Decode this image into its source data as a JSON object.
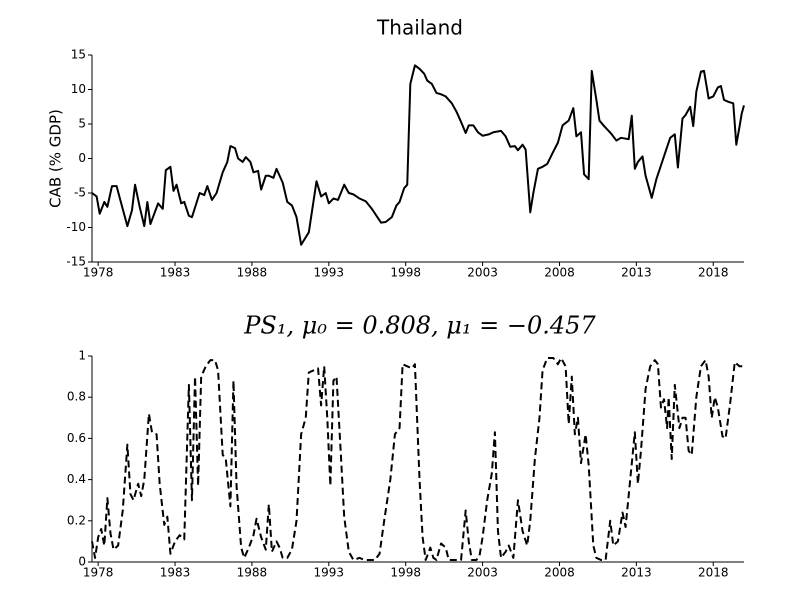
{
  "chart_data": [
    {
      "type": "line",
      "title": "Thailand",
      "ylabel": "CAB (% GDP)",
      "color": "#000000",
      "line_style": "solid",
      "xlim": [
        1977.6,
        2020
      ],
      "xticks": [
        1978,
        1983,
        1988,
        1993,
        1998,
        2003,
        2008,
        2013,
        2018
      ],
      "ylim": [
        -15,
        15
      ],
      "yticks": [
        -15,
        -10,
        -5,
        0,
        5,
        10,
        15
      ],
      "x": [
        1977.6,
        1977.9,
        1978.1,
        1978.4,
        1978.6,
        1978.9,
        1979.2,
        1979.5,
        1979.9,
        1980.2,
        1980.4,
        1980.7,
        1981,
        1981.2,
        1981.4,
        1981.9,
        1982.2,
        1982.4,
        1982.7,
        1982.9,
        1983.1,
        1983.4,
        1983.6,
        1983.9,
        1984.1,
        1984.6,
        1984.9,
        1985.1,
        1985.4,
        1985.7,
        1986.1,
        1986.4,
        1986.6,
        1986.9,
        1987.1,
        1987.4,
        1987.6,
        1987.9,
        1988.1,
        1988.4,
        1988.6,
        1988.9,
        1989.1,
        1989.4,
        1989.6,
        1990,
        1990.3,
        1990.6,
        1990.9,
        1991.2,
        1991.7,
        1992.2,
        1992.5,
        1992.8,
        1993,
        1993.3,
        1993.6,
        1994,
        1994.3,
        1994.6,
        1995,
        1995.4,
        1995.8,
        1996.1,
        1996.4,
        1996.7,
        1997.1,
        1997.4,
        1997.6,
        1997.9,
        1998.1,
        1998.3,
        1998.6,
        1998.9,
        1999.2,
        1999.4,
        1999.7,
        2000,
        2000.3,
        2000.6,
        2001,
        2001.3,
        2001.6,
        2001.9,
        2002.1,
        2002.4,
        2002.7,
        2003,
        2003.4,
        2003.7,
        2004.2,
        2004.5,
        2004.8,
        2005.1,
        2005.3,
        2005.6,
        2005.8,
        2006.1,
        2006.3,
        2006.6,
        2006.9,
        2007.2,
        2007.6,
        2007.9,
        2008.2,
        2008.6,
        2008.9,
        2009.1,
        2009.4,
        2009.6,
        2009.9,
        2010.1,
        2010.4,
        2010.6,
        2010.9,
        2011.2,
        2011.4,
        2011.7,
        2012,
        2012.5,
        2012.7,
        2012.9,
        2013.1,
        2013.4,
        2013.6,
        2014,
        2014.3,
        2014.6,
        2014.9,
        2015.2,
        2015.5,
        2015.7,
        2016,
        2016.2,
        2016.5,
        2016.7,
        2016.9,
        2017.2,
        2017.4,
        2017.7,
        2018,
        2018.3,
        2018.5,
        2018.7,
        2019,
        2019.3,
        2019.5,
        2019.7,
        2019.85,
        2020
      ],
      "values": [
        -5,
        -5.5,
        -8,
        -6.3,
        -7,
        -4,
        -4,
        -6.5,
        -9.8,
        -7.5,
        -3.8,
        -7,
        -9.8,
        -6.3,
        -9.5,
        -6.5,
        -7.3,
        -1.7,
        -1.2,
        -4.7,
        -3.8,
        -6.5,
        -6.3,
        -8.3,
        -8.5,
        -5,
        -5.3,
        -4,
        -6,
        -5,
        -2,
        -0.5,
        1.8,
        1.5,
        0,
        -0.5,
        0.2,
        -0.5,
        -2,
        -1.8,
        -4.5,
        -2.5,
        -2.5,
        -2.8,
        -1.5,
        -3.5,
        -6.3,
        -6.8,
        -8.5,
        -12.5,
        -10.7,
        -3.3,
        -5.5,
        -5,
        -6.5,
        -5.8,
        -6,
        -3.8,
        -5,
        -5.2,
        -5.8,
        -6.2,
        -7.3,
        -8.3,
        -9.3,
        -9.2,
        -8.5,
        -6.8,
        -6.3,
        -4.3,
        -3.8,
        10.8,
        13.5,
        13,
        12.3,
        11.3,
        10.8,
        9.5,
        9.3,
        9,
        8,
        6.8,
        5.3,
        3.7,
        4.8,
        4.8,
        3.8,
        3.3,
        3.5,
        3.8,
        4,
        3.2,
        1.7,
        1.8,
        1.2,
        2,
        1.3,
        -7.8,
        -5,
        -1.5,
        -1.2,
        -0.8,
        1,
        2.3,
        4.8,
        5.5,
        7.3,
        3.2,
        3.8,
        -2.3,
        -3,
        12.7,
        8.5,
        5.5,
        4.7,
        4,
        3.5,
        2.6,
        3,
        2.8,
        6.2,
        -1.5,
        -0.5,
        0.3,
        -2.5,
        -5.7,
        -3,
        -1,
        1,
        3,
        3.5,
        -1.3,
        5.8,
        6.3,
        7.5,
        4.7,
        9.7,
        12.6,
        12.7,
        8.7,
        9,
        10.3,
        10.5,
        8.5,
        8.2,
        8,
        2,
        4.5,
        6.5,
        7.7
      ]
    },
    {
      "type": "line",
      "title": "PS₁, μ₀ = 0.808, μ₁ = −0.457",
      "color": "#000000",
      "line_style": "dashed",
      "xlim": [
        1977.6,
        2020
      ],
      "xticks": [
        1978,
        1983,
        1988,
        1993,
        1998,
        2003,
        2008,
        2013,
        2018
      ],
      "ylim": [
        0,
        1
      ],
      "yticks": [
        0,
        0.2,
        0.4,
        0.6,
        0.8,
        1
      ],
      "x": [
        1977.6,
        1977.8,
        1978,
        1978.2,
        1978.4,
        1978.6,
        1978.8,
        1979,
        1979.3,
        1979.6,
        1979.9,
        1980.1,
        1980.3,
        1980.6,
        1980.8,
        1981,
        1981.3,
        1981.5,
        1981.8,
        1982,
        1982.3,
        1982.5,
        1982.7,
        1983,
        1983.3,
        1983.6,
        1983.9,
        1984.1,
        1984.3,
        1984.5,
        1984.7,
        1985,
        1985.3,
        1985.6,
        1985.8,
        1986.1,
        1986.3,
        1986.6,
        1986.8,
        1987,
        1987.3,
        1987.5,
        1987.8,
        1988.1,
        1988.3,
        1988.6,
        1988.9,
        1989.1,
        1989.3,
        1989.6,
        1989.8,
        1990,
        1990.3,
        1990.6,
        1990.9,
        1991.2,
        1991.5,
        1991.7,
        1992,
        1992.3,
        1992.5,
        1992.7,
        1992.9,
        1993.1,
        1993.3,
        1993.5,
        1993.8,
        1994,
        1994.3,
        1994.6,
        1995,
        1995.3,
        1995.6,
        1996,
        1996.3,
        1996.6,
        1997,
        1997.3,
        1997.6,
        1997.8,
        1998.1,
        1998.4,
        1998.6,
        1998.9,
        1999.1,
        1999.3,
        1999.6,
        1999.8,
        2000,
        2000.3,
        2000.6,
        2000.8,
        2001.2,
        2001.6,
        2001.9,
        2002.1,
        2002.3,
        2002.6,
        2002.8,
        2003,
        2003.3,
        2003.6,
        2003.8,
        2004,
        2004.2,
        2004.5,
        2004.7,
        2005,
        2005.3,
        2005.6,
        2005.9,
        2006.1,
        2006.4,
        2006.7,
        2006.9,
        2007.2,
        2007.6,
        2007.9,
        2008.1,
        2008.4,
        2008.6,
        2008.8,
        2009,
        2009.2,
        2009.4,
        2009.7,
        2009.9,
        2010.2,
        2010.4,
        2010.7,
        2011,
        2011.3,
        2011.5,
        2011.8,
        2012.1,
        2012.3,
        2012.6,
        2012.9,
        2013.1,
        2013.3,
        2013.6,
        2013.9,
        2014.2,
        2014.4,
        2014.6,
        2014.8,
        2015,
        2015.1,
        2015.3,
        2015.5,
        2015.8,
        2016,
        2016.2,
        2016.4,
        2016.6,
        2016.9,
        2017.2,
        2017.5,
        2017.7,
        2017.9,
        2018.1,
        2018.3,
        2018.6,
        2018.8,
        2019.1,
        2019.4,
        2019.7,
        2020
      ],
      "values": [
        0.1,
        0.02,
        0.12,
        0.16,
        0.08,
        0.31,
        0.14,
        0.06,
        0.08,
        0.25,
        0.57,
        0.33,
        0.3,
        0.38,
        0.32,
        0.4,
        0.72,
        0.63,
        0.62,
        0.38,
        0.18,
        0.22,
        0.04,
        0.1,
        0.13,
        0.11,
        0.86,
        0.3,
        0.9,
        0.37,
        0.9,
        0.95,
        0.98,
        0.98,
        0.93,
        0.52,
        0.5,
        0.27,
        0.88,
        0.37,
        0.07,
        0.02,
        0.07,
        0.13,
        0.21,
        0.12,
        0.06,
        0.28,
        0.05,
        0.1,
        0.07,
        0.02,
        0.02,
        0.06,
        0.2,
        0.62,
        0.7,
        0.92,
        0.93,
        0.94,
        0.76,
        0.95,
        0.7,
        0.37,
        0.88,
        0.9,
        0.5,
        0.22,
        0.05,
        0.01,
        0.02,
        0.01,
        0.01,
        0.01,
        0.04,
        0.2,
        0.4,
        0.62,
        0.65,
        0.96,
        0.95,
        0.94,
        0.96,
        0.4,
        0.12,
        0.01,
        0.07,
        0.02,
        0.01,
        0.09,
        0.07,
        0.01,
        0.01,
        0.01,
        0.25,
        0.1,
        0.01,
        0.01,
        0.03,
        0.12,
        0.3,
        0.43,
        0.63,
        0.15,
        0.02,
        0.05,
        0.08,
        0.02,
        0.3,
        0.15,
        0.08,
        0.2,
        0.5,
        0.7,
        0.93,
        0.99,
        0.99,
        0.96,
        0.99,
        0.95,
        0.67,
        0.9,
        0.62,
        0.7,
        0.48,
        0.62,
        0.47,
        0.08,
        0.02,
        0.01,
        0.01,
        0.2,
        0.08,
        0.1,
        0.24,
        0.17,
        0.4,
        0.63,
        0.38,
        0.54,
        0.84,
        0.95,
        0.98,
        0.96,
        0.75,
        0.79,
        0.65,
        0.8,
        0.5,
        0.86,
        0.65,
        0.7,
        0.7,
        0.54,
        0.52,
        0.8,
        0.95,
        0.98,
        0.9,
        0.7,
        0.8,
        0.75,
        0.61,
        0.6,
        0.77,
        0.97,
        0.95,
        0.95
      ]
    }
  ]
}
